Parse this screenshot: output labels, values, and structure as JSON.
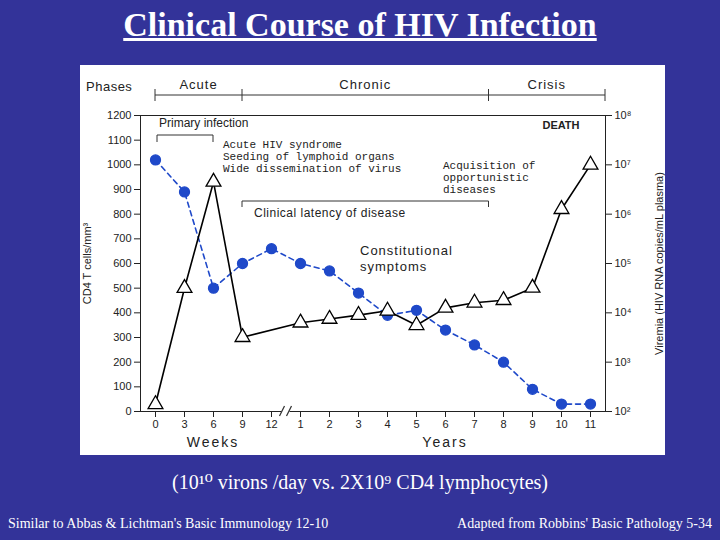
{
  "chart_data": {
    "type": "line",
    "title": "Clinical Course of HIV Infection",
    "categories": [
      "0",
      "3",
      "6",
      "9",
      "12",
      "1",
      "2",
      "3",
      "4",
      "5",
      "6",
      "7",
      "8",
      "9",
      "10",
      "11"
    ],
    "x_labels": [
      "Weeks",
      "Years"
    ],
    "ylabel": "CD4 T cells/mm³",
    "ylim": [
      0,
      1200
    ],
    "yticks": [
      0,
      100,
      200,
      300,
      400,
      500,
      600,
      700,
      800,
      900,
      1000,
      1100,
      1200
    ],
    "y2label": "Viremia (HIV RNA copies/mL plasma)",
    "y2lim": [
      100,
      100000000
    ],
    "y2ticks": [
      {
        "value": 100,
        "label": "10²"
      },
      {
        "value": 1000,
        "label": "10³"
      },
      {
        "value": 10000,
        "label": "10⁴"
      },
      {
        "value": 100000,
        "label": "10⁵"
      },
      {
        "value": 1000000,
        "label": "10⁶"
      },
      {
        "value": 10000000,
        "label": "10⁷"
      },
      {
        "value": 100000000,
        "label": "10⁸"
      }
    ],
    "grid": false,
    "series": [
      {
        "color": "#1f49c9",
        "marker": "circle",
        "line_style": "dashed",
        "values": [
          1020,
          890,
          500,
          600,
          660,
          600,
          570,
          480,
          390,
          410,
          330,
          270,
          200,
          90,
          30,
          30
        ]
      },
      {
        "axis": "y2",
        "log": true,
        "color": "#000000",
        "marker": "triangle",
        "line_style": "solid",
        "values": [
          140,
          31600,
          4500000,
          3200,
          null,
          6300,
          7500,
          9000,
          11000,
          5600,
          12600,
          16000,
          18000,
          32000,
          1260000,
          10000000
        ]
      }
    ],
    "annotations": {
      "phases_label": "Phases",
      "phases": [
        "Acute",
        "Chronic",
        "Crisis"
      ],
      "primary_infection": "Primary infection",
      "acute_events": [
        "Acute HIV syndrome",
        "Seeding of lymphoid organs",
        "Wide dissemination of virus"
      ],
      "latency": "Clinical latency of disease",
      "constitutional": [
        "Constitutional",
        "symptoms"
      ],
      "opportunistic": [
        "Acquisition of",
        "opportunistic",
        "diseases"
      ],
      "death": "DEATH"
    },
    "caption": "(10¹⁰ virons /day vs. 2X10⁹ CD4 lymphocytes)",
    "sources": [
      "Similar to Abbas & Lichtman's Basic Immunology 12-10",
      "Adapted from Robbins' Basic Pathology 5-34"
    ]
  }
}
